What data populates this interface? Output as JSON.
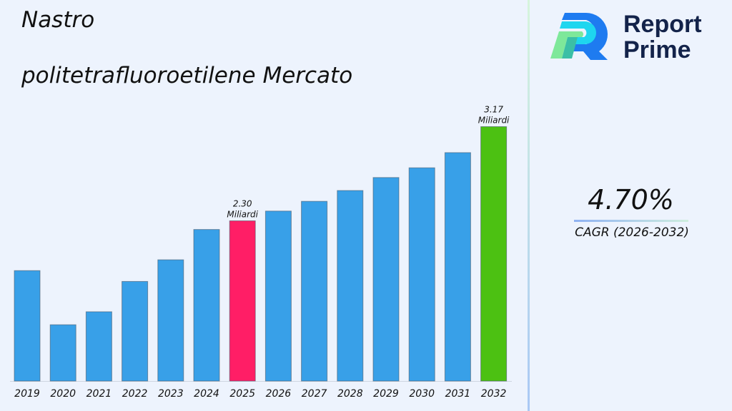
{
  "title_line1": "Nastro",
  "title_line2": "politetrafluoroetilene Mercato",
  "logo": {
    "line1": "Report",
    "line2": "Prime"
  },
  "cagr": {
    "value": "4.70%",
    "label": "CAGR (2026-2032)"
  },
  "chart_data": {
    "type": "bar",
    "title": "Nastro politetrafluoroetilene Mercato",
    "categories": [
      "2019",
      "2020",
      "2021",
      "2022",
      "2023",
      "2024",
      "2025",
      "2026",
      "2027",
      "2028",
      "2029",
      "2030",
      "2031",
      "2032"
    ],
    "values": [
      1.84,
      1.34,
      1.46,
      1.74,
      1.94,
      2.22,
      2.3,
      2.39,
      2.48,
      2.58,
      2.7,
      2.79,
      2.93,
      3.17
    ],
    "unit": "Miliardi",
    "ylim": [
      0.82,
      4.34
    ],
    "grid": false,
    "colors": {
      "default": "#38a0e8",
      "2025": "#ff1e66",
      "2032": "#4cc112"
    },
    "data_labels": [
      {
        "category": "2025",
        "value": "2.30",
        "unit": "Miliardi"
      },
      {
        "category": "2032",
        "value": "3.17",
        "unit": "Miliardi"
      }
    ]
  }
}
